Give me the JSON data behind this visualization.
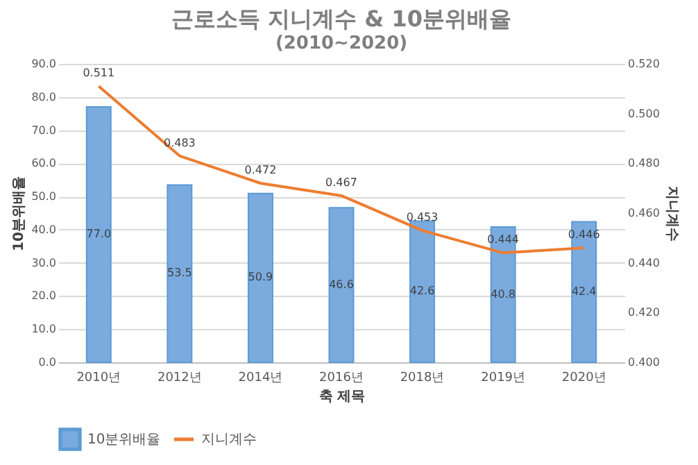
{
  "chart_data": {
    "type": "bar",
    "title": "근로소득 지니계수 & 10분위배율",
    "subtitle": "(2010~2020)",
    "xlabel": "축 제목",
    "ylabel": "10분위배율",
    "y2label": "지니계수",
    "categories": [
      "2010년",
      "2012년",
      "2014년",
      "2016년",
      "2018년",
      "2019년",
      "2020년"
    ],
    "series": [
      {
        "name": "10분위배율",
        "color": "#7aaade",
        "values": [
          77.0,
          53.5,
          50.9,
          46.6,
          42.6,
          40.8,
          42.4
        ],
        "value_labels": [
          "77.0",
          "53.5",
          "50.9",
          "46.6",
          "42.6",
          "40.8",
          "42.4"
        ]
      },
      {
        "name": "지니계수",
        "type": "line",
        "axis": "y2",
        "color": "#ed7d31",
        "values": [
          0.511,
          0.483,
          0.472,
          0.467,
          0.453,
          0.444,
          0.446
        ],
        "value_labels": [
          "0.511",
          "0.483",
          "0.472",
          "0.467",
          "0.453",
          "0.444",
          "0.446"
        ]
      }
    ],
    "ylim": [
      0,
      90
    ],
    "yticks": [
      {
        "value": 0,
        "label": "0.0"
      },
      {
        "value": 10,
        "label": "10.0"
      },
      {
        "value": 20,
        "label": "20.0"
      },
      {
        "value": 30,
        "label": "30.0"
      },
      {
        "value": 40,
        "label": "40.0"
      },
      {
        "value": 50,
        "label": "50.0"
      },
      {
        "value": 60,
        "label": "60.0"
      },
      {
        "value": 70,
        "label": "70.0"
      },
      {
        "value": 80,
        "label": "80.0"
      },
      {
        "value": 90,
        "label": "90.0"
      }
    ],
    "y2lim": [
      0.4,
      0.52
    ],
    "y2ticks": [
      {
        "value": 0.4,
        "label": "0.400"
      },
      {
        "value": 0.42,
        "label": "0.420"
      },
      {
        "value": 0.44,
        "label": "0.440"
      },
      {
        "value": 0.46,
        "label": "0.460"
      },
      {
        "value": 0.48,
        "label": "0.480"
      },
      {
        "value": 0.5,
        "label": "0.500"
      },
      {
        "value": 0.52,
        "label": "0.520"
      }
    ],
    "grid": "y",
    "legend": "bottom",
    "marker": "none",
    "line_style": "solid"
  }
}
